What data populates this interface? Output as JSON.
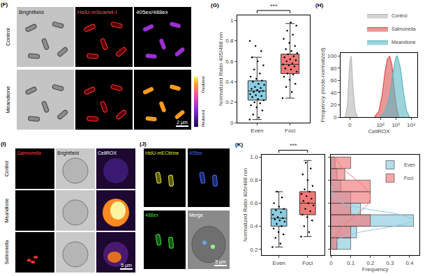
{
  "chart_data": [
    {
      "panel": "(G)",
      "type": "box",
      "categories": [
        "Even",
        "Foci"
      ],
      "ylabel": "Normalized Ratio 405/488 nm",
      "ylim": [
        0,
        1.05
      ],
      "yticks": [
        0,
        0.2,
        0.4,
        0.6,
        0.8,
        1
      ],
      "significance": "***",
      "series": [
        {
          "color": "#8ccbe0",
          "q1": 0.22,
          "median": 0.31,
          "q3": 0.41,
          "lowerfence": 0.03,
          "upperfence": 0.64,
          "points": [
            0.03,
            0.05,
            0.08,
            0.12,
            0.15,
            0.17,
            0.19,
            0.2,
            0.22,
            0.23,
            0.25,
            0.26,
            0.27,
            0.28,
            0.3,
            0.3,
            0.31,
            0.32,
            0.33,
            0.34,
            0.35,
            0.37,
            0.38,
            0.4,
            0.41,
            0.43,
            0.45,
            0.48,
            0.52,
            0.56,
            0.6,
            0.64,
            0.7,
            0.75,
            0.8
          ]
        },
        {
          "color": "#f07878",
          "q1": 0.48,
          "median": 0.57,
          "q3": 0.67,
          "lowerfence": 0.24,
          "upperfence": 0.97,
          "points": [
            0.24,
            0.3,
            0.35,
            0.38,
            0.42,
            0.45,
            0.47,
            0.48,
            0.5,
            0.52,
            0.53,
            0.55,
            0.56,
            0.57,
            0.58,
            0.6,
            0.61,
            0.62,
            0.64,
            0.65,
            0.67,
            0.68,
            0.7,
            0.72,
            0.75,
            0.78,
            0.82,
            0.86,
            0.9,
            0.95,
            0.98
          ]
        }
      ]
    },
    {
      "panel": "(H)",
      "type": "area",
      "xlabel": "CellROX",
      "ylabel": "Frequency (mode-normalized)",
      "xlim": [
        -0.6,
        4.4
      ],
      "xticks": [
        {
          "value": 0,
          "label": "0"
        },
        {
          "value": 2,
          "label": "10²"
        },
        {
          "value": 3,
          "label": "10³"
        },
        {
          "value": 4,
          "label": "10⁴"
        }
      ],
      "ylim": [
        0,
        105
      ],
      "yticks": [
        0,
        20,
        40,
        60,
        80,
        100
      ],
      "legend": "top",
      "series": [
        {
          "name": "Control",
          "color": "#b8b8b8",
          "x": [
            -0.3,
            -0.15,
            0,
            0.1,
            0.2,
            0.35,
            0.5
          ],
          "values": [
            0,
            20,
            90,
            100,
            50,
            10,
            0
          ]
        },
        {
          "name": "Salmonella",
          "color": "#e05050",
          "x": [
            1.6,
            1.9,
            2.1,
            2.3,
            2.45,
            2.6,
            2.75,
            2.9,
            3.05,
            3.2
          ],
          "values": [
            0,
            10,
            35,
            75,
            95,
            100,
            85,
            45,
            15,
            0
          ]
        },
        {
          "name": "Meandione",
          "color": "#5bb8c4",
          "x": [
            2.0,
            2.3,
            2.6,
            2.8,
            3.0,
            3.1,
            3.3,
            3.5,
            3.7,
            3.9
          ],
          "values": [
            0,
            10,
            35,
            70,
            98,
            100,
            80,
            40,
            10,
            0
          ]
        }
      ]
    },
    {
      "panel": "(K)",
      "type": "box",
      "categories": [
        "Even",
        "Foci"
      ],
      "ylabel": "Normalized Ratio 405/488 nm",
      "ylim": [
        0.15,
        1.02
      ],
      "yticks": [
        0.2,
        0.4,
        0.6,
        0.8,
        {
          "value": 1,
          "label": "1.0"
        }
      ],
      "significance": "***",
      "series": [
        {
          "color": "#8ccbe0",
          "q1": 0.4,
          "median": 0.47,
          "q3": 0.55,
          "lowerfence": 0.22,
          "upperfence": 0.7,
          "points": [
            0.22,
            0.25,
            0.3,
            0.33,
            0.35,
            0.38,
            0.4,
            0.42,
            0.44,
            0.45,
            0.46,
            0.47,
            0.48,
            0.5,
            0.52,
            0.54,
            0.55,
            0.57,
            0.6,
            0.65,
            0.7
          ]
        },
        {
          "color": "#f07878",
          "q1": 0.5,
          "median": 0.6,
          "q3": 0.7,
          "lowerfence": 0.31,
          "upperfence": 0.97,
          "points": [
            0.31,
            0.35,
            0.4,
            0.45,
            0.48,
            0.5,
            0.53,
            0.55,
            0.58,
            0.6,
            0.62,
            0.64,
            0.66,
            0.68,
            0.7,
            0.72,
            0.75,
            0.8,
            0.85,
            0.9,
            0.95
          ]
        }
      ]
    },
    {
      "type": "histogram",
      "orientation": "horizontal",
      "xlabel": "Frequency",
      "xlim": [
        0,
        0.45
      ],
      "xticks": [
        0,
        0.1,
        0.2,
        0.3,
        0.4
      ],
      "ylim": [
        0.15,
        1.02
      ],
      "tick_labels": "x",
      "legend": "top right",
      "bins": [
        0.2,
        0.3,
        0.4,
        0.5,
        0.6,
        0.7,
        0.8,
        0.9,
        1.0
      ],
      "series": [
        {
          "name": "Even",
          "color": "#8ccbe0",
          "values": [
            0.1,
            0.13,
            0.42,
            0.15,
            0.1,
            0.05,
            0.03,
            0.02
          ],
          "fit_y": [
            0.2,
            0.25,
            0.3,
            0.35,
            0.4,
            0.45,
            0.5,
            0.55,
            0.6,
            0.65,
            0.7,
            0.75
          ],
          "fit_x": [
            0,
            0.01,
            0.05,
            0.15,
            0.32,
            0.42,
            0.35,
            0.18,
            0.06,
            0.02,
            0.005,
            0
          ]
        },
        {
          "name": "Foci",
          "color": "#f07878",
          "values": [
            0.03,
            0.1,
            0.2,
            0.1,
            0.2,
            0.2,
            0.07,
            0.1
          ],
          "fit_y": [
            0.2,
            0.3,
            0.4,
            0.5,
            0.6,
            0.65,
            0.7,
            0.8,
            0.9,
            1.0
          ],
          "fit_x": [
            0.005,
            0.02,
            0.06,
            0.13,
            0.19,
            0.2,
            0.19,
            0.13,
            0.06,
            0.02
          ]
        }
      ]
    }
  ],
  "image_panels": [
    {
      "panel": "(F)",
      "columns": [
        "Brightfield",
        "HslU-mScarlet-I",
        "405ex/488ex"
      ],
      "rows": [
        "Control",
        "Meandione"
      ],
      "colorbar": [
        "Reduced",
        "Oxidized"
      ],
      "scale_bar": "2 μm"
    },
    {
      "panel": "(I)",
      "columns": [
        "Salmonella",
        "Brightfield",
        "CellROX"
      ],
      "rows": [
        "Control",
        "Meandione",
        "Salmonella"
      ],
      "scale_bar": "5 μm"
    },
    {
      "panel": "(J)",
      "tiles": [
        "HslU-mECitrine",
        "405ex",
        "488ex",
        "Merge"
      ],
      "scale_bar": "5 μm"
    }
  ]
}
